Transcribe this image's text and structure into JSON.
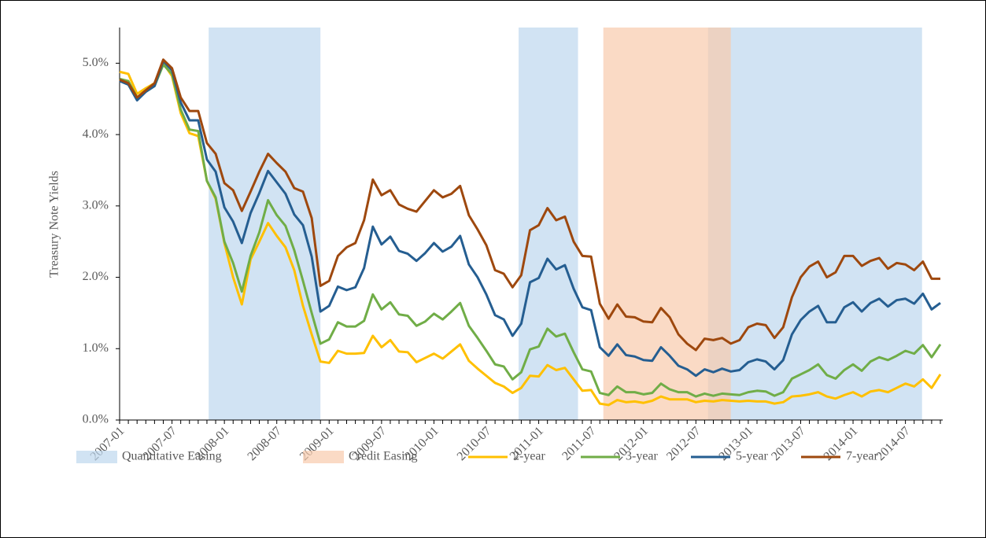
{
  "chart_data": {
    "type": "line",
    "y_label": "Treasury Note Yields",
    "categories": [
      "2007-01",
      null,
      null,
      null,
      null,
      null,
      "2007-07",
      null,
      null,
      null,
      null,
      null,
      "2008-01",
      null,
      null,
      null,
      null,
      null,
      "2008-07",
      null,
      null,
      null,
      null,
      null,
      "2009-01",
      null,
      null,
      null,
      null,
      null,
      "2009-07",
      null,
      null,
      null,
      null,
      null,
      "2010-01",
      null,
      null,
      null,
      null,
      null,
      "2010-07",
      null,
      null,
      null,
      null,
      null,
      "2011-01",
      null,
      null,
      null,
      null,
      null,
      "2011-07",
      null,
      null,
      null,
      null,
      null,
      "2012-01",
      null,
      null,
      null,
      null,
      null,
      "2012-07",
      null,
      null,
      null,
      null,
      null,
      "2013-01",
      null,
      null,
      null,
      null,
      null,
      "2013-07",
      null,
      null,
      null,
      null,
      null,
      "2014-01",
      null,
      null,
      null,
      null,
      null,
      "2014-07",
      null,
      null,
      null,
      null
    ],
    "ylim": [
      0,
      5.5
    ],
    "yticks": [
      {
        "value": 0,
        "label": "0.0%"
      },
      {
        "value": 1,
        "label": "1.0%"
      },
      {
        "value": 2,
        "label": "2.0%"
      },
      {
        "value": 3,
        "label": "3.0%"
      },
      {
        "value": 4,
        "label": "4.0%"
      },
      {
        "value": 5,
        "label": "5.0%"
      }
    ],
    "bands": [
      {
        "name": "Quantitative Easing",
        "color": "#bdd7ee",
        "spans": [
          [
            10.2,
            23
          ],
          [
            45.7,
            52.5
          ],
          [
            67.4,
            91.9
          ]
        ]
      },
      {
        "name": "Credit Easing",
        "color": "#f8cbad",
        "spans": [
          [
            55.4,
            70
          ]
        ]
      }
    ],
    "series": [
      {
        "name": "2-year",
        "color": "#ffc000",
        "values": [
          4.88,
          4.85,
          4.57,
          4.65,
          4.72,
          5.0,
          4.82,
          4.3,
          4.02,
          3.98,
          3.35,
          3.1,
          2.48,
          2.0,
          1.62,
          2.25,
          2.5,
          2.76,
          2.58,
          2.42,
          2.1,
          1.6,
          1.2,
          0.82,
          0.8,
          0.97,
          0.93,
          0.93,
          0.94,
          1.18,
          1.02,
          1.12,
          0.96,
          0.95,
          0.81,
          0.87,
          0.93,
          0.86,
          0.96,
          1.06,
          0.83,
          0.72,
          0.62,
          0.52,
          0.47,
          0.38,
          0.45,
          0.62,
          0.61,
          0.77,
          0.7,
          0.73,
          0.57,
          0.41,
          0.42,
          0.23,
          0.21,
          0.28,
          0.25,
          0.26,
          0.24,
          0.27,
          0.33,
          0.29,
          0.29,
          0.29,
          0.25,
          0.27,
          0.26,
          0.28,
          0.27,
          0.26,
          0.27,
          0.26,
          0.26,
          0.23,
          0.25,
          0.33,
          0.34,
          0.36,
          0.39,
          0.33,
          0.3,
          0.35,
          0.39,
          0.33,
          0.4,
          0.42,
          0.39,
          0.45,
          0.51,
          0.47,
          0.57,
          0.45,
          0.64
        ]
      },
      {
        "name": "3-year",
        "color": "#70ad47",
        "values": [
          4.78,
          4.75,
          4.52,
          4.6,
          4.68,
          4.98,
          4.85,
          4.35,
          4.07,
          4.05,
          3.35,
          3.12,
          2.5,
          2.2,
          1.8,
          2.3,
          2.63,
          3.08,
          2.87,
          2.72,
          2.38,
          1.95,
          1.5,
          1.07,
          1.13,
          1.37,
          1.31,
          1.31,
          1.39,
          1.76,
          1.55,
          1.65,
          1.48,
          1.46,
          1.32,
          1.38,
          1.49,
          1.41,
          1.52,
          1.64,
          1.32,
          1.15,
          0.97,
          0.78,
          0.75,
          0.57,
          0.67,
          0.99,
          1.03,
          1.28,
          1.17,
          1.21,
          0.95,
          0.71,
          0.68,
          0.38,
          0.35,
          0.47,
          0.39,
          0.39,
          0.36,
          0.38,
          0.51,
          0.43,
          0.39,
          0.39,
          0.33,
          0.37,
          0.34,
          0.37,
          0.36,
          0.35,
          0.39,
          0.41,
          0.4,
          0.34,
          0.39,
          0.58,
          0.64,
          0.7,
          0.78,
          0.63,
          0.58,
          0.7,
          0.78,
          0.69,
          0.82,
          0.88,
          0.84,
          0.9,
          0.97,
          0.93,
          1.05,
          0.88,
          1.06
        ]
      },
      {
        "name": "5-year",
        "color": "#255e91",
        "values": [
          4.75,
          4.7,
          4.48,
          4.6,
          4.68,
          5.03,
          4.9,
          4.45,
          4.2,
          4.2,
          3.65,
          3.48,
          2.98,
          2.78,
          2.48,
          2.9,
          3.18,
          3.49,
          3.33,
          3.17,
          2.88,
          2.73,
          2.29,
          1.52,
          1.6,
          1.87,
          1.82,
          1.86,
          2.13,
          2.71,
          2.46,
          2.57,
          2.37,
          2.33,
          2.23,
          2.34,
          2.48,
          2.36,
          2.43,
          2.58,
          2.18,
          2.0,
          1.76,
          1.47,
          1.41,
          1.18,
          1.35,
          1.93,
          1.99,
          2.26,
          2.11,
          2.17,
          1.84,
          1.58,
          1.54,
          1.02,
          0.9,
          1.06,
          0.91,
          0.89,
          0.84,
          0.83,
          1.02,
          0.9,
          0.76,
          0.71,
          0.62,
          0.71,
          0.67,
          0.72,
          0.68,
          0.7,
          0.81,
          0.85,
          0.82,
          0.71,
          0.84,
          1.2,
          1.4,
          1.52,
          1.6,
          1.37,
          1.37,
          1.58,
          1.65,
          1.52,
          1.64,
          1.7,
          1.59,
          1.68,
          1.7,
          1.63,
          1.77,
          1.55,
          1.64
        ]
      },
      {
        "name": "7-year",
        "color": "#9e480e",
        "values": [
          4.77,
          4.72,
          4.52,
          4.62,
          4.72,
          5.05,
          4.93,
          4.52,
          4.33,
          4.33,
          3.88,
          3.73,
          3.32,
          3.22,
          2.93,
          3.2,
          3.48,
          3.73,
          3.6,
          3.48,
          3.25,
          3.2,
          2.83,
          1.88,
          1.95,
          2.3,
          2.42,
          2.48,
          2.8,
          3.37,
          3.15,
          3.22,
          3.02,
          2.96,
          2.92,
          3.07,
          3.22,
          3.12,
          3.17,
          3.28,
          2.87,
          2.67,
          2.45,
          2.1,
          2.05,
          1.86,
          2.03,
          2.66,
          2.73,
          2.97,
          2.8,
          2.85,
          2.5,
          2.3,
          2.29,
          1.63,
          1.42,
          1.62,
          1.45,
          1.44,
          1.38,
          1.37,
          1.57,
          1.44,
          1.2,
          1.07,
          0.98,
          1.14,
          1.12,
          1.15,
          1.07,
          1.12,
          1.3,
          1.35,
          1.33,
          1.15,
          1.3,
          1.72,
          2.0,
          2.15,
          2.22,
          2.0,
          2.07,
          2.3,
          2.3,
          2.16,
          2.23,
          2.27,
          2.12,
          2.2,
          2.18,
          2.1,
          2.22,
          1.98,
          1.98
        ]
      }
    ]
  }
}
